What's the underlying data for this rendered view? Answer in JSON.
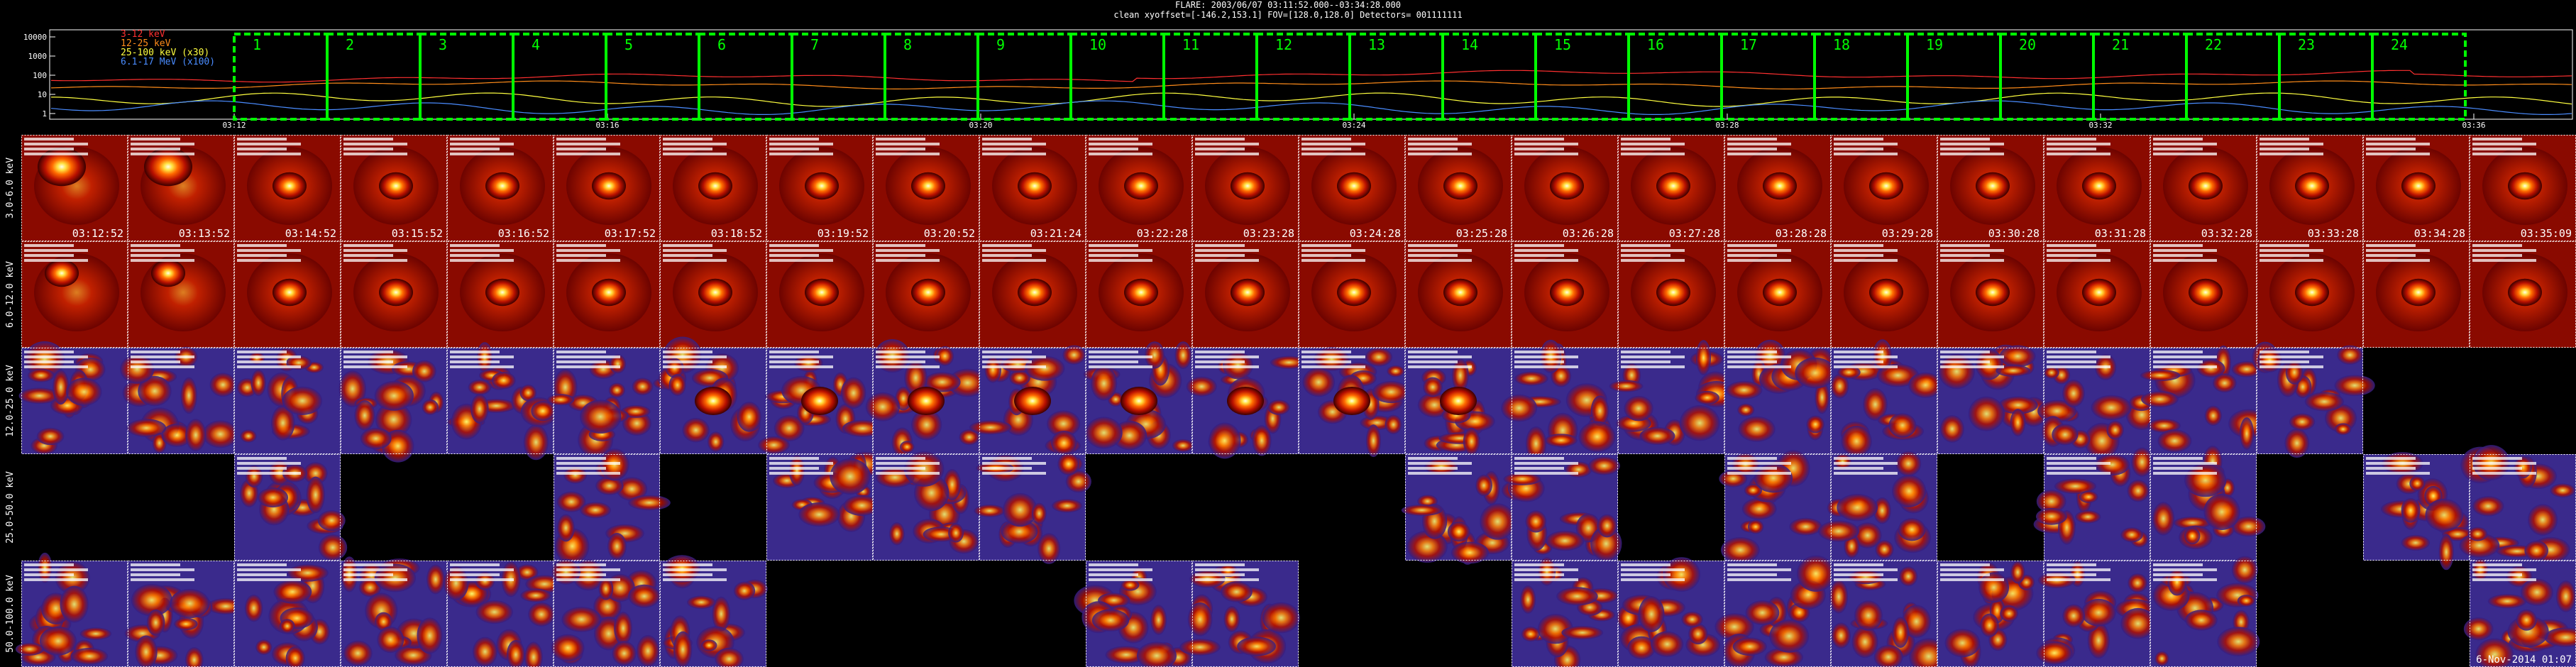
{
  "header": {
    "line1": "FLARE: 2003/06/07 03:11:52.000--03:34:28.000",
    "line2": "clean    xyoffset=[-146.2,153.1]   FOV=[128.0,128.0]   Detectors= 001111111"
  },
  "lightcurve": {
    "ytick_labels": [
      "10000",
      "1000",
      "100",
      "10",
      "1"
    ],
    "legend": [
      {
        "label": "3-12 keV",
        "color": "#ff3030"
      },
      {
        "label": "12-25 keV",
        "color": "#ff8c1a"
      },
      {
        "label": "25-100 keV (x30)",
        "color": "#ffff40"
      },
      {
        "label": "6.1-17 MeV (x100)",
        "color": "#4a8cff"
      }
    ],
    "time_labels": [
      "03:12",
      "03:16",
      "03:20",
      "03:24",
      "03:28",
      "03:32",
      "03:36"
    ],
    "interval_labels": [
      "1",
      "2",
      "3",
      "4",
      "5",
      "6",
      "7",
      "8",
      "9",
      "10",
      "11",
      "12",
      "13",
      "14",
      "15",
      "16",
      "17",
      "18",
      "19",
      "20",
      "21",
      "22",
      "23",
      "24"
    ]
  },
  "energy_bands": [
    "3.0-6.0 keV",
    "6.0-12.0 keV",
    "12.0-25.0 keV",
    "25.0-50.0 keV",
    "50.0-100.0 keV"
  ],
  "row0_times": [
    "03:12:52",
    "03:13:52",
    "03:14:52",
    "03:15:52",
    "03:16:52",
    "03:17:52",
    "03:18:52",
    "03:19:52",
    "03:20:52",
    "03:21:24",
    "03:22:28",
    "03:23:28",
    "03:24:28",
    "03:25:28",
    "03:26:28",
    "03:27:28",
    "03:28:28",
    "03:29:28",
    "03:30:28",
    "03:31:28",
    "03:32:28",
    "03:33:28",
    "03:34:28",
    "03:35:09"
  ],
  "availability": [
    [
      1,
      1,
      1,
      1,
      1,
      1,
      1,
      1,
      1,
      1,
      1,
      1,
      1,
      1,
      1,
      1,
      1,
      1,
      1,
      1,
      1,
      1,
      1,
      1
    ],
    [
      1,
      1,
      1,
      1,
      1,
      1,
      1,
      1,
      1,
      1,
      1,
      1,
      1,
      1,
      1,
      1,
      1,
      1,
      1,
      1,
      1,
      1,
      1,
      1
    ],
    [
      1,
      1,
      1,
      1,
      1,
      1,
      1,
      1,
      1,
      1,
      1,
      1,
      1,
      1,
      1,
      1,
      1,
      1,
      1,
      1,
      1,
      1,
      0,
      0
    ],
    [
      0,
      0,
      1,
      0,
      0,
      1,
      0,
      1,
      1,
      1,
      0,
      0,
      0,
      1,
      1,
      0,
      1,
      1,
      0,
      1,
      1,
      0,
      1,
      1
    ],
    [
      1,
      1,
      1,
      1,
      1,
      1,
      1,
      0,
      0,
      0,
      1,
      1,
      0,
      0,
      1,
      1,
      1,
      1,
      1,
      1,
      1,
      0,
      0,
      1
    ]
  ],
  "colors": {
    "frame": "#00ff00",
    "tile_border": "#ffffff"
  },
  "footer": "6-Nov-2014 01:07"
}
